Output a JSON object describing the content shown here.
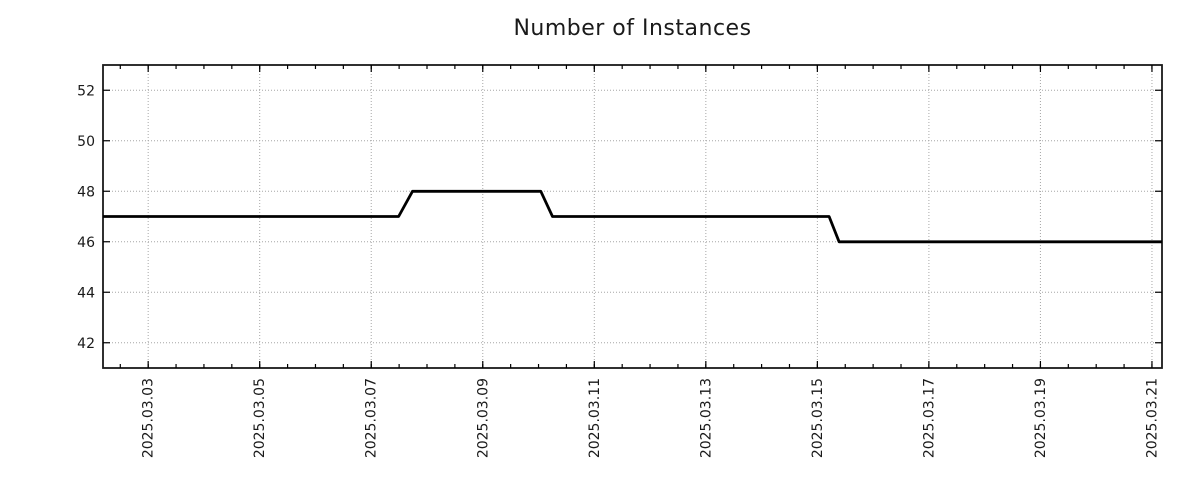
{
  "chart_data": {
    "type": "line",
    "line_style": "step",
    "title": "Number of Instances",
    "xlabel": "",
    "ylabel": "",
    "x_unit": "day of month, March 2025 (fractional days)",
    "x_domain": [
      2.19,
      21.18
    ],
    "ylim": [
      41,
      53
    ],
    "yticks": [
      42,
      44,
      46,
      48,
      50,
      52
    ],
    "xticks": [
      {
        "x": 3,
        "label": "2025.03.03"
      },
      {
        "x": 5,
        "label": "2025.03.05"
      },
      {
        "x": 7,
        "label": "2025.03.07"
      },
      {
        "x": 9,
        "label": "2025.03.09"
      },
      {
        "x": 11,
        "label": "2025.03.11"
      },
      {
        "x": 13,
        "label": "2025.03.13"
      },
      {
        "x": 15,
        "label": "2025.03.15"
      },
      {
        "x": 17,
        "label": "2025.03.17"
      },
      {
        "x": 19,
        "label": "2025.03.19"
      },
      {
        "x": 21,
        "label": "2025.03.21"
      }
    ],
    "minor_tick_step_days": 0.5,
    "grid": true,
    "legend": false,
    "series": [
      {
        "name": "instances",
        "color": "#000000",
        "points": [
          [
            2.19,
            47
          ],
          [
            7.49,
            47
          ],
          [
            7.74,
            48
          ],
          [
            10.04,
            48
          ],
          [
            10.25,
            47
          ],
          [
            15.21,
            47
          ],
          [
            15.39,
            46
          ],
          [
            21.18,
            46
          ]
        ]
      }
    ],
    "colors": {
      "line": "#000000",
      "grid": "#a6a6a6",
      "text": "#1a1a1a",
      "background": "#ffffff"
    }
  }
}
